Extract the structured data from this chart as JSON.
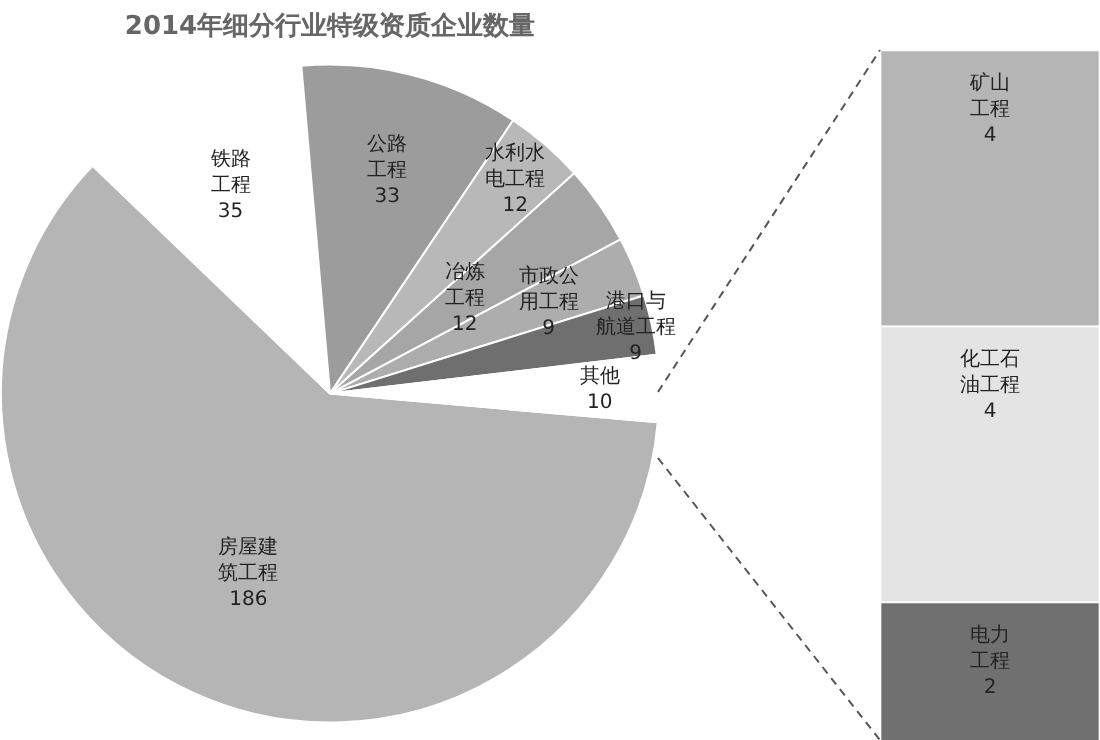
{
  "chart_data": [
    {
      "type": "pie",
      "title": "2014年细分行业特级资质企业数量",
      "categories": [
        "房屋建筑工程",
        "铁路工程",
        "公路工程",
        "水利水电工程",
        "冶炼工程",
        "市政公用工程",
        "港口与航道工程",
        "其他"
      ],
      "values": [
        186,
        35,
        33,
        12,
        12,
        9,
        9,
        10
      ],
      "colors": [
        "#b5b5b5",
        "#ffffff",
        "#9c9c9c",
        "#b8b8b8",
        "#a6a6a6",
        "#adadad",
        "#6f6f6f",
        "#ffffff"
      ],
      "data_labels": true
    },
    {
      "type": "bar",
      "stacked": true,
      "categories": [
        null
      ],
      "series": [
        {
          "name": "电力工程",
          "color": "#707070",
          "values": [
            2
          ]
        },
        {
          "name": "化工石油工程",
          "color": "#e4e4e4",
          "values": [
            4
          ]
        },
        {
          "name": "矿山工程",
          "color": "#b5b5b5",
          "values": [
            4
          ]
        }
      ],
      "data_labels": true,
      "tick_labels": false
    }
  ]
}
